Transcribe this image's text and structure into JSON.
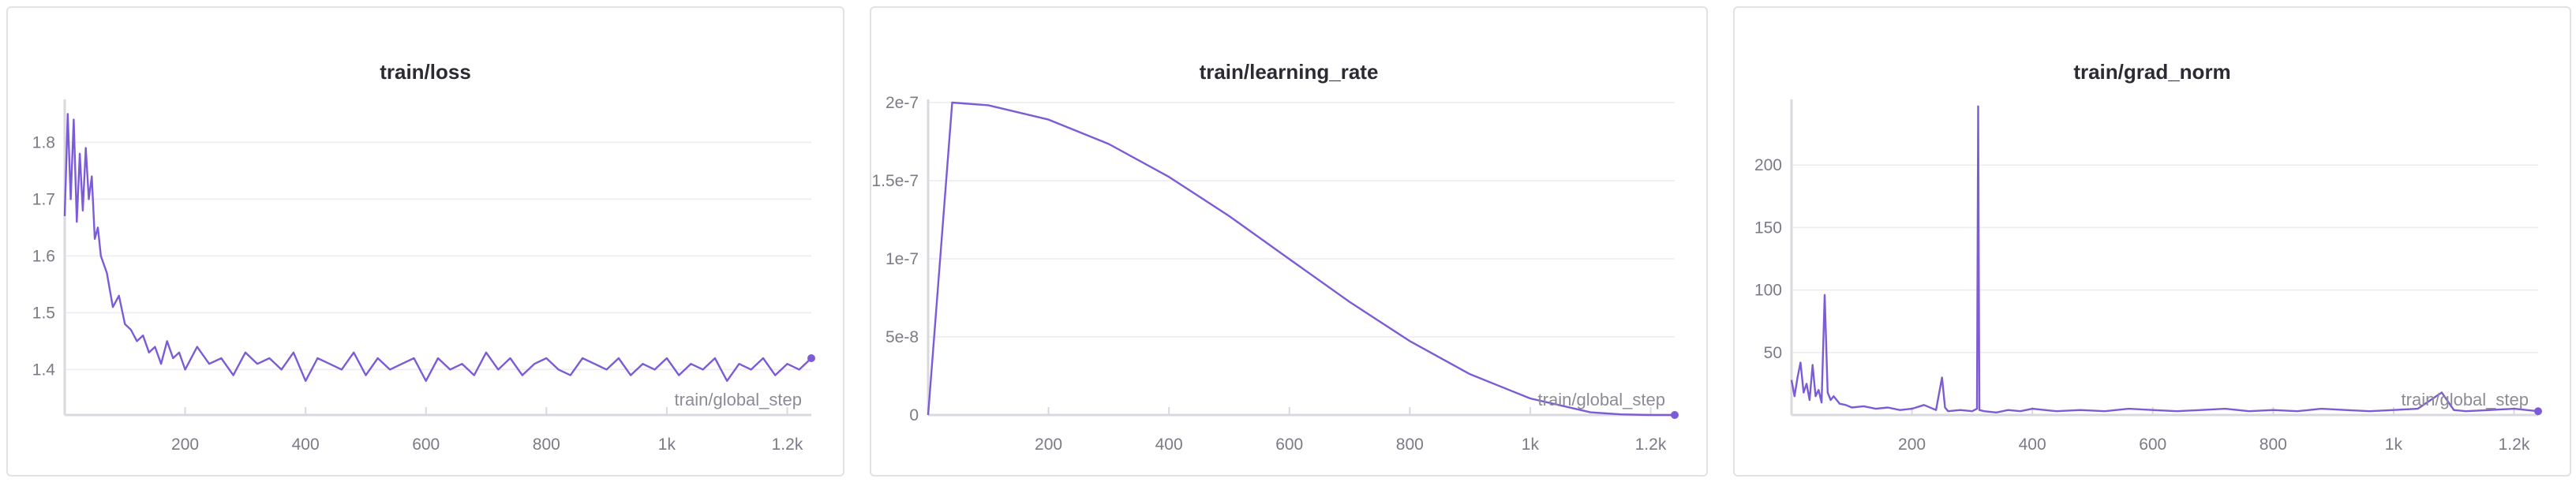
{
  "colors": {
    "series": "#7c5cd6",
    "grid": "#ececf0",
    "axis": "#d9d9de"
  },
  "chart_data": [
    {
      "type": "line",
      "title": "train/loss",
      "xlabel": "train/global_step",
      "ylabel": "",
      "xlim": [
        0,
        1240
      ],
      "ylim": [
        1.32,
        1.87
      ],
      "xticks": [
        200,
        400,
        600,
        800,
        1000,
        1200
      ],
      "xtick_labels": [
        "200",
        "400",
        "600",
        "800",
        "1k",
        "1.2k"
      ],
      "yticks": [
        1.4,
        1.5,
        1.6,
        1.7,
        1.8
      ],
      "ytick_labels": [
        "1.4",
        "1.5",
        "1.6",
        "1.7",
        "1.8"
      ],
      "grid": true,
      "legend": "none",
      "series": [
        {
          "x": [
            0,
            5,
            10,
            15,
            20,
            25,
            30,
            35,
            40,
            45,
            50,
            55,
            60,
            70,
            80,
            90,
            100,
            110,
            120,
            130,
            140,
            150,
            160,
            170,
            180,
            190,
            200,
            220,
            240,
            260,
            280,
            300,
            320,
            340,
            360,
            380,
            400,
            420,
            440,
            460,
            480,
            500,
            520,
            540,
            560,
            580,
            600,
            620,
            640,
            660,
            680,
            700,
            720,
            740,
            760,
            780,
            800,
            820,
            840,
            860,
            880,
            900,
            920,
            940,
            960,
            980,
            1000,
            1020,
            1040,
            1060,
            1080,
            1100,
            1120,
            1140,
            1160,
            1180,
            1200,
            1220,
            1240
          ],
          "y": [
            1.67,
            1.85,
            1.7,
            1.84,
            1.66,
            1.78,
            1.68,
            1.79,
            1.7,
            1.74,
            1.63,
            1.65,
            1.6,
            1.57,
            1.51,
            1.53,
            1.48,
            1.47,
            1.45,
            1.46,
            1.43,
            1.44,
            1.41,
            1.45,
            1.42,
            1.43,
            1.4,
            1.44,
            1.41,
            1.42,
            1.39,
            1.43,
            1.41,
            1.42,
            1.4,
            1.43,
            1.38,
            1.42,
            1.41,
            1.4,
            1.43,
            1.39,
            1.42,
            1.4,
            1.41,
            1.42,
            1.38,
            1.42,
            1.4,
            1.41,
            1.39,
            1.43,
            1.4,
            1.42,
            1.39,
            1.41,
            1.42,
            1.4,
            1.39,
            1.42,
            1.41,
            1.4,
            1.42,
            1.39,
            1.41,
            1.4,
            1.42,
            1.39,
            1.41,
            1.4,
            1.42,
            1.38,
            1.41,
            1.4,
            1.42,
            1.39,
            1.41,
            1.4,
            1.42
          ]
        }
      ]
    },
    {
      "type": "line",
      "title": "train/learning_rate",
      "xlabel": "train/global_step",
      "ylabel": "",
      "xlim": [
        0,
        1240
      ],
      "ylim": [
        0,
        2e-07
      ],
      "xticks": [
        200,
        400,
        600,
        800,
        1000,
        1200
      ],
      "xtick_labels": [
        "200",
        "400",
        "600",
        "800",
        "1k",
        "1.2k"
      ],
      "yticks": [
        0,
        5e-08,
        1e-07,
        1.5e-07,
        2e-07
      ],
      "ytick_labels": [
        "0",
        "5e-8",
        "1e-7",
        "1.5e-7",
        "2e-7"
      ],
      "grid": true,
      "legend": "none",
      "series": [
        {
          "x": [
            0,
            40,
            100,
            200,
            300,
            400,
            500,
            600,
            700,
            800,
            900,
            1000,
            1100,
            1150,
            1200,
            1240
          ],
          "y": [
            0,
            2e-07,
            1.983e-07,
            1.891e-07,
            1.735e-07,
            1.524e-07,
            1.273e-07,
            9.98e-08,
            7.24e-08,
            4.73e-08,
            2.61e-08,
            1.06e-08,
            1.7e-09,
            4e-10,
            0,
            0
          ]
        }
      ]
    },
    {
      "type": "line",
      "title": "train/grad_norm",
      "xlabel": "train/global_step",
      "ylabel": "",
      "xlim": [
        0,
        1240
      ],
      "ylim": [
        0,
        250
      ],
      "xticks": [
        200,
        400,
        600,
        800,
        1000,
        1200
      ],
      "xtick_labels": [
        "200",
        "400",
        "600",
        "800",
        "1k",
        "1.2k"
      ],
      "yticks": [
        50,
        100,
        150,
        200
      ],
      "ytick_labels": [
        "50",
        "100",
        "150",
        "200"
      ],
      "grid": true,
      "legend": "none",
      "series": [
        {
          "x": [
            0,
            5,
            10,
            15,
            20,
            25,
            30,
            35,
            40,
            45,
            50,
            55,
            60,
            65,
            70,
            80,
            90,
            100,
            120,
            140,
            160,
            180,
            200,
            220,
            240,
            250,
            255,
            260,
            280,
            300,
            308,
            310,
            312,
            320,
            340,
            360,
            380,
            400,
            440,
            480,
            520,
            560,
            600,
            640,
            680,
            720,
            760,
            800,
            840,
            880,
            920,
            960,
            1000,
            1040,
            1080,
            1100,
            1120,
            1160,
            1200,
            1240
          ],
          "y": [
            28,
            15,
            30,
            42,
            18,
            25,
            12,
            40,
            15,
            20,
            10,
            96,
            18,
            12,
            15,
            9,
            8,
            6,
            7,
            5,
            6,
            4,
            5,
            8,
            4,
            30,
            6,
            3,
            4,
            3,
            5,
            247,
            4,
            3,
            2,
            4,
            3,
            5,
            3,
            4,
            3,
            5,
            4,
            3,
            4,
            5,
            3,
            4,
            3,
            5,
            4,
            3,
            4,
            5,
            18,
            4,
            3,
            4,
            5,
            3
          ]
        }
      ]
    }
  ]
}
